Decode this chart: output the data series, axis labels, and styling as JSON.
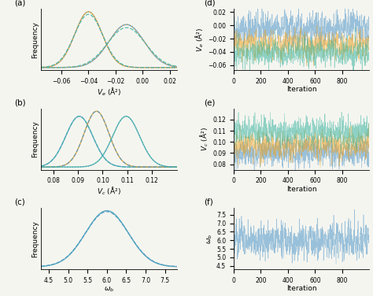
{
  "colors": {
    "blue": "#4e96c8",
    "orange": "#e8a020",
    "green": "#3ab5a0",
    "teal": "#17becf"
  },
  "panel_a": {
    "label": "(a)",
    "xlabel": "$V_e$ (Å²)",
    "xlim": [
      -0.075,
      0.025
    ],
    "xticks": [
      -0.06,
      -0.04,
      -0.02,
      0.0,
      0.02
    ],
    "gaussians": [
      {
        "mean": -0.04,
        "std": 0.01,
        "color": "#e8a020",
        "lw": 1.0,
        "ls": "-"
      },
      {
        "mean": -0.04,
        "std": 0.0105,
        "color": "#3ab5a0",
        "lw": 0.9,
        "ls": "--"
      },
      {
        "mean": -0.04,
        "std": 0.01,
        "color": "#4e96c8",
        "lw": 0.9,
        "ls": ":"
      },
      {
        "mean": -0.012,
        "std": 0.013,
        "color": "#4e96c8",
        "lw": 1.0,
        "ls": "-"
      },
      {
        "mean": -0.012,
        "std": 0.014,
        "color": "#3ab5a0",
        "lw": 0.9,
        "ls": "--"
      },
      {
        "mean": -0.012,
        "std": 0.013,
        "color": "#e8a020",
        "lw": 0.9,
        "ls": ":"
      }
    ]
  },
  "panel_b": {
    "label": "(b)",
    "xlabel": "$V_c$ (Å²)",
    "xlim": [
      0.075,
      0.13
    ],
    "xticks": [
      0.08,
      0.09,
      0.1,
      0.11,
      0.12
    ],
    "gaussians": [
      {
        "mean": 0.0905,
        "std": 0.0055,
        "color": "#4e96c8",
        "lw": 1.0,
        "ls": "-"
      },
      {
        "mean": 0.0905,
        "std": 0.0055,
        "color": "#3ab5a0",
        "lw": 0.9,
        "ls": "--"
      },
      {
        "mean": 0.0975,
        "std": 0.005,
        "color": "#e8a020",
        "lw": 1.0,
        "ls": "-"
      },
      {
        "mean": 0.0975,
        "std": 0.005,
        "color": "#4e96c8",
        "lw": 0.9,
        "ls": "--"
      },
      {
        "mean": 0.1095,
        "std": 0.0055,
        "color": "#3ab5a0",
        "lw": 1.0,
        "ls": "-"
      },
      {
        "mean": 0.1095,
        "std": 0.0055,
        "color": "#4e96c8",
        "lw": 0.9,
        "ls": ":"
      }
    ]
  },
  "panel_c": {
    "label": "(c)",
    "xlabel": "$\\omega_b$",
    "xlim": [
      4.3,
      7.8
    ],
    "xticks": [
      4.5,
      5.0,
      5.5,
      6.0,
      6.5,
      7.0,
      7.5
    ],
    "gaussians": [
      {
        "mean": 6.0,
        "std": 0.55,
        "color": "#4e96c8",
        "lw": 1.0,
        "ls": "-"
      },
      {
        "mean": 6.0,
        "std": 0.56,
        "color": "#4e96c8",
        "lw": 0.9,
        "ls": "--"
      },
      {
        "mean": 6.0,
        "std": 0.55,
        "color": "#3ab5a0",
        "lw": 0.9,
        "ls": ":"
      }
    ]
  },
  "panel_d": {
    "label": "(d)",
    "ylabel": "$V_e$ (Å²)",
    "ylim": [
      -0.068,
      0.025
    ],
    "yticks": [
      -0.06,
      -0.04,
      -0.02,
      0.0,
      0.02
    ],
    "n_iter": 1000,
    "traces": [
      {
        "mean": -0.005,
        "std": 0.012,
        "color": "#4e96c8",
        "alpha": 0.55,
        "lw": 0.4
      },
      {
        "mean": -0.03,
        "std": 0.01,
        "color": "#e8a020",
        "alpha": 0.55,
        "lw": 0.4
      },
      {
        "mean": -0.042,
        "std": 0.01,
        "color": "#3ab5a0",
        "alpha": 0.55,
        "lw": 0.4
      }
    ]
  },
  "panel_e": {
    "label": "(e)",
    "ylabel": "$V_c$ (Å²)",
    "ylim": [
      0.075,
      0.13
    ],
    "yticks": [
      0.08,
      0.09,
      0.1,
      0.11,
      0.12
    ],
    "n_iter": 1000,
    "traces": [
      {
        "mean": 0.0905,
        "std": 0.006,
        "color": "#4e96c8",
        "alpha": 0.55,
        "lw": 0.4
      },
      {
        "mean": 0.0975,
        "std": 0.006,
        "color": "#e8a020",
        "alpha": 0.55,
        "lw": 0.4
      },
      {
        "mean": 0.1095,
        "std": 0.006,
        "color": "#3ab5a0",
        "alpha": 0.55,
        "lw": 0.4
      }
    ]
  },
  "panel_f": {
    "label": "(f)",
    "ylabel": "$\\omega_b$",
    "ylim": [
      4.3,
      7.9
    ],
    "yticks": [
      4.5,
      5.0,
      5.5,
      6.0,
      6.5,
      7.0,
      7.5
    ],
    "n_iter": 1000,
    "traces": [
      {
        "mean": 6.0,
        "std": 0.5,
        "color": "#4e96c8",
        "alpha": 0.55,
        "lw": 0.4
      }
    ]
  },
  "ylabel_freq": "Frequency",
  "xlabel_iter": "Iteration",
  "background": "#f5f5f0",
  "tick_fontsize": 5.5,
  "label_fontsize": 6.5,
  "panel_label_fontsize": 7.5
}
